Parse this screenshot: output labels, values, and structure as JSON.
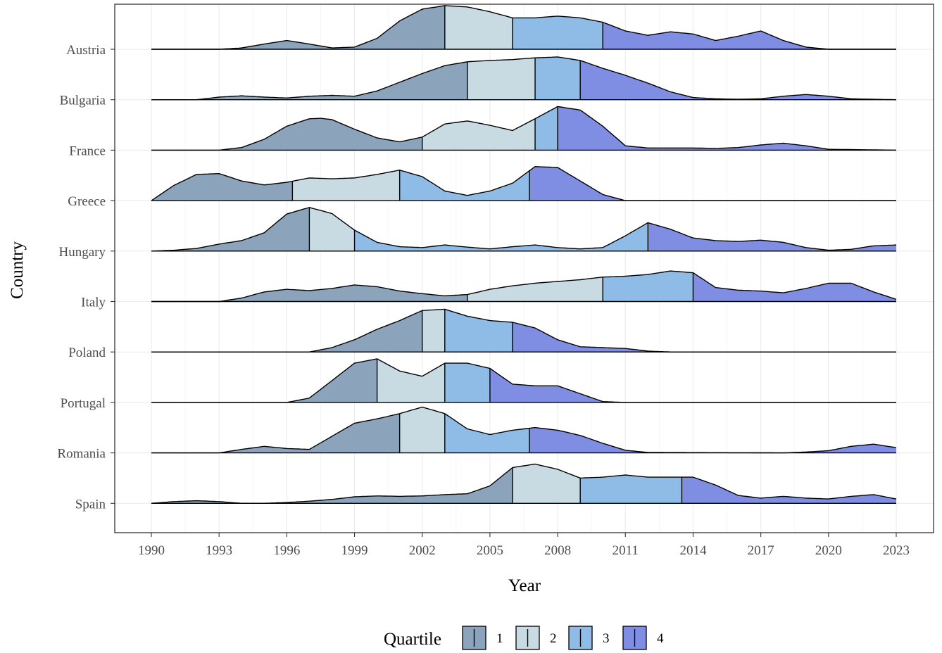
{
  "chart_data": {
    "type": "ridgeline",
    "xlabel": "Year",
    "ylabel": "Country",
    "xlim": [
      1990,
      2023
    ],
    "x_ticks": [
      "1990",
      "1993",
      "1996",
      "1999",
      "2002",
      "2005",
      "2008",
      "2011",
      "2014",
      "2017",
      "2020",
      "2023"
    ],
    "grid": true,
    "legend": {
      "title": "Quartile",
      "placement": "bottom",
      "entries": [
        "1",
        "2",
        "3",
        "4"
      ]
    },
    "quartile_colors": [
      "#8BA4BC",
      "#C8DBE2",
      "#8FBCE6",
      "#7F8EE3"
    ],
    "countries": [
      {
        "name": "Austria",
        "quartile_breaks": [
          2003,
          2006,
          2010
        ],
        "density": [
          [
            1990,
            0
          ],
          [
            1993,
            0
          ],
          [
            1994,
            0.03
          ],
          [
            1995,
            0.12
          ],
          [
            1996,
            0.2
          ],
          [
            1997,
            0.12
          ],
          [
            1998,
            0.03
          ],
          [
            1999,
            0.05
          ],
          [
            2000,
            0.25
          ],
          [
            2001,
            0.65
          ],
          [
            2002,
            0.92
          ],
          [
            2003,
            1.0
          ],
          [
            2004,
            0.97
          ],
          [
            2005,
            0.86
          ],
          [
            2006,
            0.72
          ],
          [
            2007,
            0.72
          ],
          [
            2008,
            0.76
          ],
          [
            2009,
            0.72
          ],
          [
            2010,
            0.62
          ],
          [
            2011,
            0.42
          ],
          [
            2012,
            0.32
          ],
          [
            2013,
            0.4
          ],
          [
            2014,
            0.35
          ],
          [
            2015,
            0.2
          ],
          [
            2016,
            0.3
          ],
          [
            2017,
            0.42
          ],
          [
            2018,
            0.2
          ],
          [
            2019,
            0.05
          ],
          [
            2020,
            0
          ],
          [
            2023,
            0
          ]
        ]
      },
      {
        "name": "Bulgaria",
        "quartile_breaks": [
          2004,
          2007,
          2009
        ],
        "density": [
          [
            1990,
            0
          ],
          [
            1992,
            0
          ],
          [
            1993,
            0.06
          ],
          [
            1994,
            0.09
          ],
          [
            1995,
            0.06
          ],
          [
            1996,
            0.04
          ],
          [
            1997,
            0.08
          ],
          [
            1998,
            0.1
          ],
          [
            1999,
            0.08
          ],
          [
            2000,
            0.2
          ],
          [
            2001,
            0.4
          ],
          [
            2002,
            0.6
          ],
          [
            2003,
            0.78
          ],
          [
            2004,
            0.87
          ],
          [
            2005,
            0.9
          ],
          [
            2006,
            0.92
          ],
          [
            2007,
            0.96
          ],
          [
            2008,
            0.98
          ],
          [
            2009,
            0.9
          ],
          [
            2010,
            0.72
          ],
          [
            2011,
            0.56
          ],
          [
            2012,
            0.38
          ],
          [
            2013,
            0.18
          ],
          [
            2014,
            0.05
          ],
          [
            2015,
            0.02
          ],
          [
            2016,
            0.01
          ],
          [
            2017,
            0.02
          ],
          [
            2018,
            0.08
          ],
          [
            2019,
            0.12
          ],
          [
            2020,
            0.08
          ],
          [
            2021,
            0.02
          ],
          [
            2023,
            0
          ]
        ]
      },
      {
        "name": "France",
        "quartile_breaks": [
          2002,
          2007,
          2008
        ],
        "density": [
          [
            1990,
            0
          ],
          [
            1993,
            0
          ],
          [
            1994,
            0.06
          ],
          [
            1995,
            0.25
          ],
          [
            1996,
            0.55
          ],
          [
            1997,
            0.72
          ],
          [
            1997.5,
            0.73
          ],
          [
            1998,
            0.7
          ],
          [
            1999,
            0.48
          ],
          [
            2000,
            0.28
          ],
          [
            2001,
            0.19
          ],
          [
            2002,
            0.3
          ],
          [
            2003,
            0.6
          ],
          [
            2004,
            0.67
          ],
          [
            2005,
            0.57
          ],
          [
            2006,
            0.45
          ],
          [
            2007,
            0.72
          ],
          [
            2008,
            1.0
          ],
          [
            2009,
            0.92
          ],
          [
            2010,
            0.55
          ],
          [
            2011,
            0.1
          ],
          [
            2012,
            0.05
          ],
          [
            2013,
            0.05
          ],
          [
            2014,
            0.05
          ],
          [
            2015,
            0.04
          ],
          [
            2016,
            0.06
          ],
          [
            2017,
            0.12
          ],
          [
            2018,
            0.16
          ],
          [
            2019,
            0.1
          ],
          [
            2020,
            0.02
          ],
          [
            2023,
            0
          ]
        ]
      },
      {
        "name": "Greece",
        "quartile_breaks": [
          1996.25,
          2001,
          2006.75
        ],
        "density": [
          [
            1990,
            0
          ],
          [
            1991,
            0.35
          ],
          [
            1992,
            0.6
          ],
          [
            1993,
            0.62
          ],
          [
            1994,
            0.45
          ],
          [
            1995,
            0.36
          ],
          [
            1996,
            0.42
          ],
          [
            1997,
            0.52
          ],
          [
            1998,
            0.5
          ],
          [
            1999,
            0.52
          ],
          [
            2000,
            0.6
          ],
          [
            2001,
            0.7
          ],
          [
            2002,
            0.55
          ],
          [
            2003,
            0.22
          ],
          [
            2004,
            0.12
          ],
          [
            2005,
            0.22
          ],
          [
            2006,
            0.4
          ],
          [
            2007,
            0.78
          ],
          [
            2008,
            0.76
          ],
          [
            2009,
            0.45
          ],
          [
            2010,
            0.14
          ],
          [
            2011,
            0
          ],
          [
            2023,
            0
          ]
        ]
      },
      {
        "name": "Hungary",
        "quartile_breaks": [
          1997,
          1999,
          2012
        ],
        "density": [
          [
            1990,
            0
          ],
          [
            1991,
            0.02
          ],
          [
            1992,
            0.06
          ],
          [
            1993,
            0.16
          ],
          [
            1994,
            0.24
          ],
          [
            1995,
            0.42
          ],
          [
            1996,
            0.85
          ],
          [
            1997,
            1.0
          ],
          [
            1998,
            0.86
          ],
          [
            1999,
            0.48
          ],
          [
            2000,
            0.2
          ],
          [
            2001,
            0.1
          ],
          [
            2002,
            0.08
          ],
          [
            2003,
            0.14
          ],
          [
            2004,
            0.09
          ],
          [
            2005,
            0.05
          ],
          [
            2006,
            0.1
          ],
          [
            2007,
            0.14
          ],
          [
            2008,
            0.08
          ],
          [
            2009,
            0.05
          ],
          [
            2010,
            0.08
          ],
          [
            2011,
            0.35
          ],
          [
            2012,
            0.65
          ],
          [
            2013,
            0.5
          ],
          [
            2014,
            0.3
          ],
          [
            2015,
            0.24
          ],
          [
            2016,
            0.22
          ],
          [
            2017,
            0.25
          ],
          [
            2018,
            0.2
          ],
          [
            2019,
            0.08
          ],
          [
            2020,
            0.02
          ],
          [
            2021,
            0.04
          ],
          [
            2022,
            0.12
          ],
          [
            2023,
            0.14
          ]
        ]
      },
      {
        "name": "Italy",
        "quartile_breaks": [
          2004,
          2010,
          2014
        ],
        "density": [
          [
            1990,
            0
          ],
          [
            1993,
            0
          ],
          [
            1994,
            0.08
          ],
          [
            1995,
            0.22
          ],
          [
            1996,
            0.28
          ],
          [
            1997,
            0.25
          ],
          [
            1998,
            0.3
          ],
          [
            1999,
            0.38
          ],
          [
            2000,
            0.34
          ],
          [
            2001,
            0.24
          ],
          [
            2002,
            0.18
          ],
          [
            2003,
            0.13
          ],
          [
            2004,
            0.16
          ],
          [
            2005,
            0.28
          ],
          [
            2006,
            0.36
          ],
          [
            2007,
            0.42
          ],
          [
            2008,
            0.46
          ],
          [
            2009,
            0.5
          ],
          [
            2010,
            0.56
          ],
          [
            2011,
            0.58
          ],
          [
            2012,
            0.62
          ],
          [
            2013,
            0.7
          ],
          [
            2014,
            0.66
          ],
          [
            2015,
            0.32
          ],
          [
            2016,
            0.26
          ],
          [
            2017,
            0.24
          ],
          [
            2018,
            0.2
          ],
          [
            2019,
            0.3
          ],
          [
            2020,
            0.42
          ],
          [
            2021,
            0.42
          ],
          [
            2022,
            0.22
          ],
          [
            2023,
            0.05
          ]
        ]
      },
      {
        "name": "Poland",
        "quartile_breaks": [
          2002,
          2003,
          2006
        ],
        "density": [
          [
            1990,
            0
          ],
          [
            1997,
            0
          ],
          [
            1998,
            0.1
          ],
          [
            1999,
            0.28
          ],
          [
            2000,
            0.52
          ],
          [
            2001,
            0.72
          ],
          [
            2002,
            0.95
          ],
          [
            2003,
            0.98
          ],
          [
            2004,
            0.82
          ],
          [
            2005,
            0.72
          ],
          [
            2006,
            0.68
          ],
          [
            2007,
            0.55
          ],
          [
            2008,
            0.28
          ],
          [
            2009,
            0.12
          ],
          [
            2010,
            0.1
          ],
          [
            2011,
            0.08
          ],
          [
            2012,
            0.02
          ],
          [
            2013,
            0
          ],
          [
            2023,
            0
          ]
        ]
      },
      {
        "name": "Portugal",
        "quartile_breaks": [
          2000,
          2003,
          2005
        ],
        "density": [
          [
            1990,
            0
          ],
          [
            1996,
            0
          ],
          [
            1997,
            0.1
          ],
          [
            1998,
            0.5
          ],
          [
            1999,
            0.9
          ],
          [
            2000,
            1.0
          ],
          [
            2001,
            0.72
          ],
          [
            2002,
            0.6
          ],
          [
            2003,
            0.9
          ],
          [
            2004,
            0.9
          ],
          [
            2005,
            0.78
          ],
          [
            2006,
            0.42
          ],
          [
            2007,
            0.38
          ],
          [
            2008,
            0.38
          ],
          [
            2009,
            0.2
          ],
          [
            2010,
            0.02
          ],
          [
            2011,
            0
          ],
          [
            2023,
            0
          ]
        ]
      },
      {
        "name": "Romania",
        "quartile_breaks": [
          2001,
          2003,
          2006.75
        ],
        "density": [
          [
            1990,
            0
          ],
          [
            1993,
            0
          ],
          [
            1994,
            0.08
          ],
          [
            1995,
            0.15
          ],
          [
            1996,
            0.1
          ],
          [
            1997,
            0.08
          ],
          [
            1998,
            0.38
          ],
          [
            1999,
            0.68
          ],
          [
            2000,
            0.78
          ],
          [
            2001,
            0.9
          ],
          [
            2002,
            1.05
          ],
          [
            2003,
            0.9
          ],
          [
            2004,
            0.55
          ],
          [
            2005,
            0.42
          ],
          [
            2006,
            0.52
          ],
          [
            2007,
            0.58
          ],
          [
            2008,
            0.52
          ],
          [
            2009,
            0.4
          ],
          [
            2010,
            0.22
          ],
          [
            2011,
            0.06
          ],
          [
            2012,
            0.01
          ],
          [
            2018,
            0
          ],
          [
            2019,
            0.02
          ],
          [
            2020,
            0.05
          ],
          [
            2021,
            0.15
          ],
          [
            2022,
            0.2
          ],
          [
            2023,
            0.12
          ]
        ]
      },
      {
        "name": "Spain",
        "quartile_breaks": [
          2006,
          2009,
          2013.5
        ],
        "density": [
          [
            1990,
            0
          ],
          [
            1991,
            0.04
          ],
          [
            1992,
            0.06
          ],
          [
            1993,
            0.04
          ],
          [
            1994,
            0
          ],
          [
            1995,
            0
          ],
          [
            1996,
            0.02
          ],
          [
            1997,
            0.05
          ],
          [
            1998,
            0.09
          ],
          [
            1999,
            0.15
          ],
          [
            2000,
            0.17
          ],
          [
            2001,
            0.16
          ],
          [
            2002,
            0.17
          ],
          [
            2003,
            0.2
          ],
          [
            2004,
            0.22
          ],
          [
            2005,
            0.4
          ],
          [
            2006,
            0.82
          ],
          [
            2007,
            0.9
          ],
          [
            2008,
            0.78
          ],
          [
            2009,
            0.58
          ],
          [
            2010,
            0.6
          ],
          [
            2011,
            0.65
          ],
          [
            2012,
            0.6
          ],
          [
            2013,
            0.6
          ],
          [
            2014,
            0.6
          ],
          [
            2015,
            0.42
          ],
          [
            2016,
            0.18
          ],
          [
            2017,
            0.12
          ],
          [
            2018,
            0.16
          ],
          [
            2019,
            0.12
          ],
          [
            2020,
            0.1
          ],
          [
            2021,
            0.16
          ],
          [
            2022,
            0.2
          ],
          [
            2023,
            0.1
          ]
        ]
      }
    ]
  }
}
